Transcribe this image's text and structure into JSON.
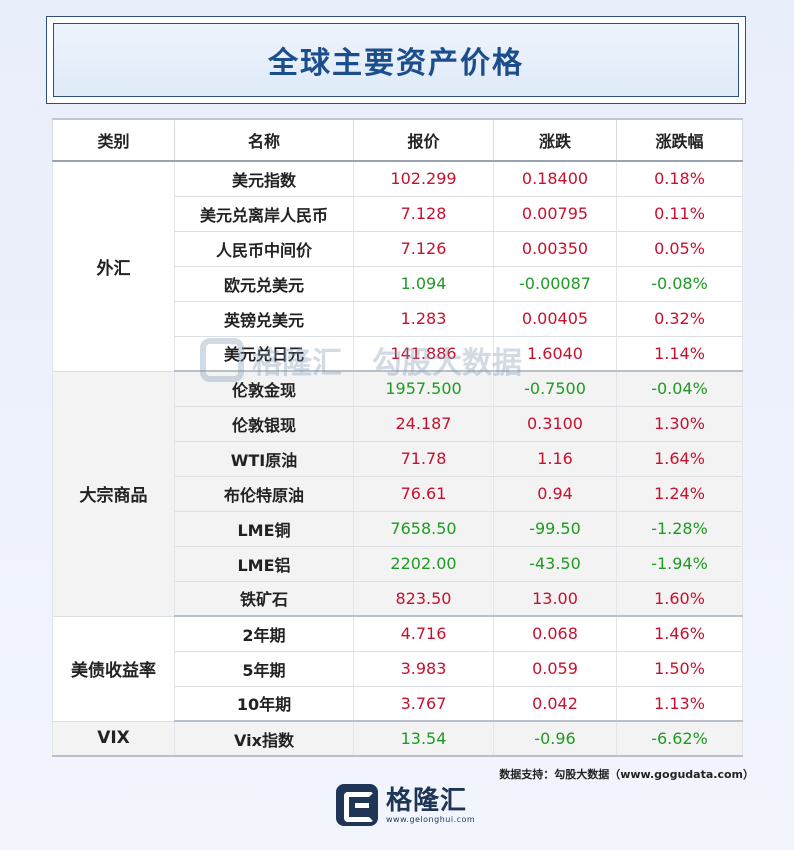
{
  "title": "全球主要资产价格",
  "headers": [
    "类别",
    "名称",
    "报价",
    "涨跌",
    "涨跌幅"
  ],
  "groups": [
    {
      "category": "外汇",
      "rows": [
        {
          "name": "美元指数",
          "price": "102.299",
          "change": "0.18400",
          "pct": "0.18%",
          "dir": "up"
        },
        {
          "name": "美元兑离岸人民币",
          "price": "7.128",
          "change": "0.00795",
          "pct": "0.11%",
          "dir": "up"
        },
        {
          "name": "人民币中间价",
          "price": "7.126",
          "change": "0.00350",
          "pct": "0.05%",
          "dir": "up"
        },
        {
          "name": "欧元兑美元",
          "price": "1.094",
          "change": "-0.00087",
          "pct": "-0.08%",
          "dir": "down"
        },
        {
          "name": "英镑兑美元",
          "price": "1.283",
          "change": "0.00405",
          "pct": "0.32%",
          "dir": "up"
        },
        {
          "name": "美元兑日元",
          "price": "141.886",
          "change": "1.6040",
          "pct": "1.14%",
          "dir": "up"
        }
      ]
    },
    {
      "category": "大宗商品",
      "rows": [
        {
          "name": "伦敦金现",
          "price": "1957.500",
          "change": "-0.7500",
          "pct": "-0.04%",
          "dir": "down"
        },
        {
          "name": "伦敦银现",
          "price": "24.187",
          "change": "0.3100",
          "pct": "1.30%",
          "dir": "up"
        },
        {
          "name": "WTI原油",
          "price": "71.78",
          "change": "1.16",
          "pct": "1.64%",
          "dir": "up"
        },
        {
          "name": "布伦特原油",
          "price": "76.61",
          "change": "0.94",
          "pct": "1.24%",
          "dir": "up"
        },
        {
          "name": "LME铜",
          "price": "7658.50",
          "change": "-99.50",
          "pct": "-1.28%",
          "dir": "down"
        },
        {
          "name": "LME铝",
          "price": "2202.00",
          "change": "-43.50",
          "pct": "-1.94%",
          "dir": "down"
        },
        {
          "name": "铁矿石",
          "price": "823.50",
          "change": "13.00",
          "pct": "1.60%",
          "dir": "up"
        }
      ]
    },
    {
      "category": "美债收益率",
      "rows": [
        {
          "name": "2年期",
          "price": "4.716",
          "change": "0.068",
          "pct": "1.46%",
          "dir": "up"
        },
        {
          "name": "5年期",
          "price": "3.983",
          "change": "0.059",
          "pct": "1.50%",
          "dir": "up"
        },
        {
          "name": "10年期",
          "price": "3.767",
          "change": "0.042",
          "pct": "1.13%",
          "dir": "up"
        }
      ]
    },
    {
      "category": "VIX",
      "rows": [
        {
          "name": "Vix指数",
          "price": "13.54",
          "change": "-0.96",
          "pct": "-6.62%",
          "dir": "down"
        }
      ]
    }
  ],
  "watermark": {
    "brand": "格隆汇",
    "url": "www.gelonghui.com",
    "brand2": "勾股大数据",
    "url2": "www.gogudata.com"
  },
  "source": "数据支持：勾股大数据（www.gogudata.com）",
  "logo": {
    "name": "格隆汇",
    "url": "www.gelonghui.com"
  },
  "colors": {
    "up": "#c8102e",
    "down": "#1e9b22",
    "title": "#1d4e8c"
  }
}
